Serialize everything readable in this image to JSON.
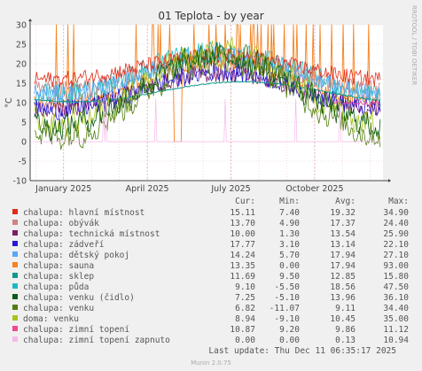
{
  "chart_data": {
    "type": "line",
    "title": "01 Teplota - by year",
    "ylabel": "°C",
    "side_label": "RRDTOOL / TOBI OETIKER",
    "ylim": [
      -10,
      30
    ],
    "yticks": [
      -10,
      -5,
      0,
      5,
      10,
      15,
      20,
      25,
      30
    ],
    "x_tick_labels": [
      "January 2025",
      "April 2025",
      "July 2025",
      "October 2025"
    ],
    "x_tick_months": [
      1,
      4,
      7,
      10
    ],
    "xlim_months": [
      -0.2,
      12.45
    ],
    "grid": true,
    "legend_headers": [
      "Cur:",
      "Min:",
      "Avg:",
      "Max:"
    ],
    "series": [
      {
        "name": "chalupa: hlavní místnost",
        "color": "#e22b17",
        "cur": "15.11",
        "min": "7.40",
        "avg": "19.32",
        "max": "34.90"
      },
      {
        "name": "chalupa: obývák",
        "color": "#cf8484",
        "cur": "13.70",
        "min": "4.90",
        "avg": "17.37",
        "max": "24.40"
      },
      {
        "name": "chalupa: technická místnost",
        "color": "#7a1d6b",
        "cur": "10.00",
        "min": "1.30",
        "avg": "13.54",
        "max": "25.90"
      },
      {
        "name": "chalupa: zádveří",
        "color": "#2a16d6",
        "cur": "17.77",
        "min": "3.10",
        "avg": "13.14",
        "max": "22.10"
      },
      {
        "name": "chalupa: dětský pokoj",
        "color": "#59a7f5",
        "cur": "14.24",
        "min": "5.70",
        "avg": "17.94",
        "max": "27.10"
      },
      {
        "name": "chalupa: sauna",
        "color": "#f5821f",
        "cur": "13.35",
        "min": "0.00",
        "avg": "17.94",
        "max": "93.00"
      },
      {
        "name": "chalupa: sklep",
        "color": "#0d9a8e",
        "cur": "11.69",
        "min": "9.50",
        "avg": "12.85",
        "max": "15.80"
      },
      {
        "name": "chalupa: půda",
        "color": "#1bb9c4",
        "cur": "9.10",
        "min": "-5.50",
        "avg": "18.56",
        "max": "47.50"
      },
      {
        "name": "chalupa: venku (čidlo)",
        "color": "#0b5c14",
        "cur": "7.25",
        "min": "-5.10",
        "avg": "13.96",
        "max": "36.10"
      },
      {
        "name": "chalupa: venku",
        "color": "#4f7d0f",
        "cur": "6.82",
        "min": "-11.07",
        "avg": "9.11",
        "max": "34.40"
      },
      {
        "name": "doma: venku",
        "color": "#a8c41c",
        "cur": "8.94",
        "min": "-9.10",
        "avg": "10.45",
        "max": "35.00"
      },
      {
        "name": "chalupa: zimní topení",
        "color": "#ef4a8f",
        "cur": "10.87",
        "min": "9.20",
        "avg": "9.86",
        "max": "11.12"
      },
      {
        "name": "chalupa: zimní topení zapnuto",
        "color": "#f5b9ea",
        "cur": "0.00",
        "min": "0.00",
        "avg": "0.13",
        "max": "10.94"
      }
    ]
  },
  "footer": {
    "last_update": "Last update: Thu Dec 11 06:35:17 2025",
    "munin": "Munin 2.0.75"
  }
}
